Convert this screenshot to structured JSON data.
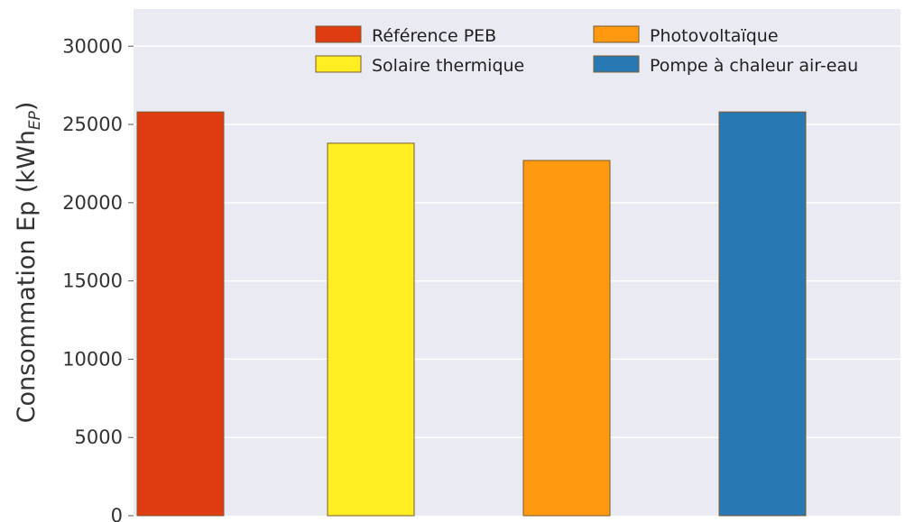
{
  "chart_data": {
    "type": "bar",
    "title": "",
    "xlabel": "",
    "ylabel": "Consommation Ep (kWh",
    "ylabel_sub": "EP",
    "ylabel_close": ")",
    "ylim": [
      0,
      31500
    ],
    "yticks": [
      0,
      5000,
      10000,
      15000,
      20000,
      25000,
      30000
    ],
    "grid": true,
    "background": "#eaeaf2",
    "legend_position": "top-right",
    "series": [
      {
        "name": "Référence PEB",
        "value": 25800,
        "color": "#e03c12"
      },
      {
        "name": "Solaire thermique",
        "value": 23800,
        "color": "#ffee22"
      },
      {
        "name": "Photovoltaïque",
        "value": 22700,
        "color": "#ff9a10"
      },
      {
        "name": "Pompe à chaleur air-eau",
        "value": 25800,
        "color": "#2878b4"
      }
    ]
  }
}
